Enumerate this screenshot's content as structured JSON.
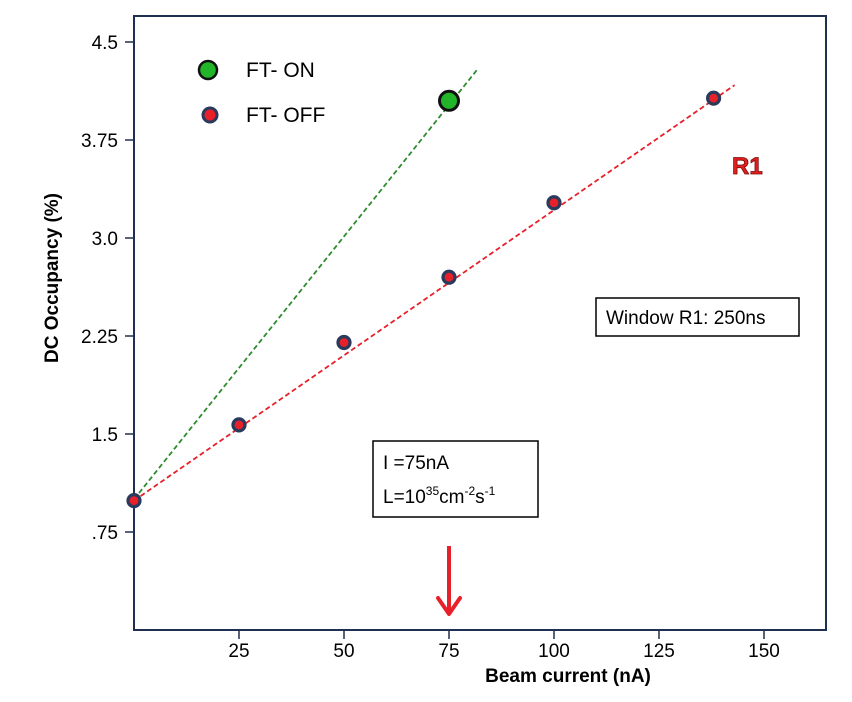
{
  "chart_data": {
    "type": "scatter",
    "title": "",
    "xlabel": "Beam current (nA)",
    "ylabel": "DC Occupancy (%)",
    "xlim": [
      0,
      165
    ],
    "ylim": [
      0,
      4.5
    ],
    "x_ticks": [
      "25",
      "50",
      "75",
      "100",
      "125",
      "150"
    ],
    "x_tick_values": [
      25,
      50,
      75,
      100,
      125,
      150
    ],
    "y_ticks": [
      ".75",
      "1.5",
      "2.25",
      "3.0",
      "3.75",
      "4.5"
    ],
    "y_tick_values": [
      0.75,
      1.5,
      2.25,
      3.0,
      3.75,
      4.5
    ],
    "grid": false,
    "legend_position": "top-left",
    "series": [
      {
        "name": "FT- ON",
        "marker_color": "#22b52a",
        "marker_edge": "#111111",
        "line_color": "#2e8b2e",
        "x": [
          0,
          75
        ],
        "y": [
          0.99,
          4.05
        ],
        "fit_x": [
          0,
          82
        ],
        "fit_y": [
          1.0,
          4.3
        ]
      },
      {
        "name": "FT- OFF",
        "marker_color": "#e8202a",
        "marker_edge": "#2a3a5c",
        "line_color": "#e8202a",
        "x": [
          0,
          25,
          50,
          75,
          100,
          138
        ],
        "y": [
          0.99,
          1.57,
          2.2,
          2.7,
          3.27,
          4.07
        ],
        "fit_x": [
          0,
          143
        ],
        "fit_y": [
          0.99,
          4.17
        ]
      }
    ],
    "annotations": {
      "region_label": "R1",
      "region_color": "#e02020",
      "window_box": "Window R1: 250ns",
      "info_line1": "I =75nA",
      "info_L": "L=10",
      "info_exp1": "35",
      "info_cm": "cm",
      "info_exp2": "-2",
      "info_s": "s",
      "info_exp3": "-1",
      "arrow_color": "#e8202a",
      "arrow_x": 75
    }
  }
}
